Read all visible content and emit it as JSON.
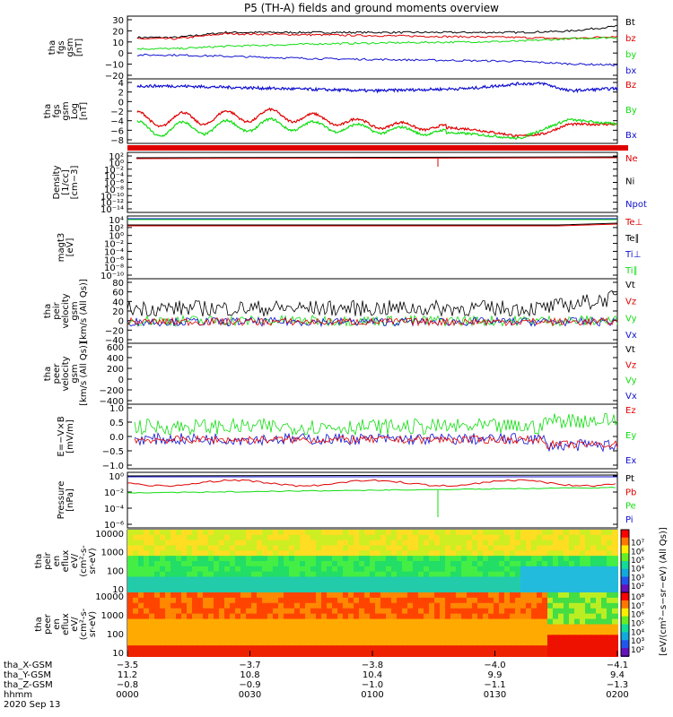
{
  "title": "P5 (TH-A) fields and ground moments overview",
  "colors": {
    "black": "#000000",
    "red": "#e00000",
    "green": "#10dd10",
    "blue": "#1010d0"
  },
  "panels": [
    {
      "id": "fgs-gsm",
      "ylabel": [
        "tha",
        "fgs",
        "gsm",
        "[nT]"
      ],
      "yticks": [
        "30",
        "20",
        "10",
        "0",
        "−10",
        "−20"
      ],
      "legend": [
        {
          "text": "Bt",
          "color": "black"
        },
        {
          "text": "bz",
          "color": "red"
        },
        {
          "text": "by",
          "color": "green"
        },
        {
          "text": "bx",
          "color": "blue"
        }
      ]
    },
    {
      "id": "fgs-gsm-log",
      "ylabel": [
        "tha",
        "fgs",
        "gsm",
        "Log",
        "[nT]"
      ],
      "yticks": [
        "4",
        "2",
        "0",
        "−2",
        "−4",
        "−6",
        "−8"
      ],
      "legend": [
        {
          "text": "Bz",
          "color": "red"
        },
        {
          "text": "By",
          "color": "green"
        },
        {
          "text": "Bx",
          "color": "blue"
        }
      ]
    },
    {
      "id": "density",
      "ylabel": [
        "Density",
        "[1/cc]",
        "[cm−3]"
      ],
      "yticks": [
        "10²",
        "10⁰",
        "10⁻²",
        "10⁻⁴",
        "10⁻⁶",
        "10⁻⁸",
        "10⁻¹⁰",
        "10⁻¹²",
        "10⁻¹⁴"
      ],
      "legend": [
        {
          "text": "Ne",
          "color": "red"
        },
        {
          "text": "Ni",
          "color": "black"
        },
        {
          "text": "Npot",
          "color": "blue"
        }
      ]
    },
    {
      "id": "temperature",
      "ylabel": [
        "magt3",
        "[eV]"
      ],
      "yticks": [
        "10⁴",
        "10²",
        "10⁰",
        "10⁻²",
        "10⁻⁴",
        "10⁻⁶",
        "10⁻⁸",
        "10⁻¹⁰"
      ],
      "legend": [
        {
          "text": "Te⊥",
          "color": "red"
        },
        {
          "text": "Te∥",
          "color": "black"
        },
        {
          "text": "Ti⊥",
          "color": "blue"
        },
        {
          "text": "Ti∥",
          "color": "green"
        }
      ]
    },
    {
      "id": "peir-velocity",
      "ylabel": [
        "tha",
        "peir",
        "velocity",
        "gsm",
        "[km/s (All Qs)]"
      ],
      "yticks": [
        "80",
        "60",
        "40",
        "20",
        "0",
        "−20",
        "−40"
      ],
      "legend": [
        {
          "text": "Vt",
          "color": "black"
        },
        {
          "text": "Vz",
          "color": "red"
        },
        {
          "text": "Vy",
          "color": "green"
        },
        {
          "text": "Vx",
          "color": "blue"
        }
      ]
    },
    {
      "id": "peer-velocity",
      "ylabel": [
        "tha",
        "peer",
        "velocity",
        "gsm",
        "[km/s (All Qs)]"
      ],
      "yticks": [
        "600",
        "400",
        "200",
        "0",
        "−200",
        "−400"
      ],
      "legend": [
        {
          "text": "Vt",
          "color": "black"
        },
        {
          "text": "Vz",
          "color": "red"
        },
        {
          "text": "Vy",
          "color": "green"
        },
        {
          "text": "Vx",
          "color": "blue"
        }
      ]
    },
    {
      "id": "efield",
      "ylabel": [
        "E=−V×B",
        "[mV/m]"
      ],
      "yticks": [
        "1.0",
        "0.5",
        "0.0",
        "−0.5",
        "−1.0"
      ],
      "legend": [
        {
          "text": "Ez",
          "color": "red"
        },
        {
          "text": "Ey",
          "color": "green"
        },
        {
          "text": "Ex",
          "color": "blue"
        }
      ]
    },
    {
      "id": "pressure",
      "ylabel": [
        "Pressure",
        "[nPa]"
      ],
      "yticks": [
        "10⁰",
        "10⁻²",
        "10⁻⁴",
        "10⁻⁶"
      ],
      "legend": [
        {
          "text": "Pt",
          "color": "black"
        },
        {
          "text": "Pb",
          "color": "red"
        },
        {
          "text": "Pe",
          "color": "green"
        },
        {
          "text": "Pi",
          "color": "blue"
        }
      ]
    },
    {
      "id": "peir-spec",
      "ylabel": [
        "tha",
        "peir",
        "en",
        "eflux",
        "eV/",
        "(cm²-s-",
        "sr-eV)"
      ],
      "yticks": [
        "10000",
        "1000",
        "100",
        "10"
      ],
      "legend": []
    },
    {
      "id": "peer-spec",
      "ylabel": [
        "tha",
        "peer",
        "en",
        "eflux",
        "eV/",
        "(cm²-s-",
        "sr-eV)"
      ],
      "yticks": [
        "10000",
        "1000",
        "100",
        "10"
      ],
      "legend": []
    }
  ],
  "colorbar": {
    "ticks": [
      "10⁸",
      "10⁷",
      "10⁶",
      "10⁵",
      "10⁴",
      "10³",
      "10²"
    ],
    "label": "[eV/(cm²−s−sr−eV) (All Qs)]"
  },
  "xaxis": {
    "rows": [
      {
        "label": "tha_X-GSM",
        "values": [
          "−3.5",
          "−3.7",
          "−3.8",
          "−4.0",
          "−4.1"
        ]
      },
      {
        "label": "tha_Y-GSM",
        "values": [
          "11.2",
          "10.8",
          "10.4",
          "9.9",
          "9.4"
        ]
      },
      {
        "label": "tha_Z-GSM",
        "values": [
          "−0.8",
          "−0.9",
          "−1.0",
          "−1.1",
          "−1.3"
        ]
      },
      {
        "label": "hhmm",
        "values": [
          "0000",
          "0030",
          "0100",
          "0130",
          "0200"
        ]
      }
    ],
    "date": "2020 Sep 13"
  },
  "chart_data": {
    "type": "line",
    "title": "P5 (TH-A) fields and ground moments overview",
    "x": [
      "0000",
      "0030",
      "0100",
      "0130",
      "0200"
    ],
    "xlabel": "hhmm",
    "panels": [
      {
        "name": "tha fgs gsm [nT]",
        "ylim": [
          -20,
          30
        ],
        "series": [
          {
            "name": "Bt",
            "x": [
              0.1,
              0.2,
              0.4,
              0.6,
              0.8,
              0.9,
              1.0
            ],
            "values": [
              13,
              17,
              17,
              17,
              17,
              18,
              22
            ]
          },
          {
            "name": "bz",
            "x": [
              0.1,
              0.2,
              0.4,
              0.6,
              0.8,
              0.9,
              1.0
            ],
            "values": [
              12,
              16,
              15,
              14,
              13,
              12,
              14
            ]
          },
          {
            "name": "by",
            "x": [
              0.1,
              0.2,
              0.4,
              0.6,
              0.8,
              0.9,
              1.0
            ],
            "values": [
              4,
              6,
              8,
              9,
              10,
              12,
              13
            ]
          },
          {
            "name": "bx",
            "x": [
              0.1,
              0.2,
              0.4,
              0.6,
              0.8,
              0.9,
              1.0
            ],
            "values": [
              -1,
              -2,
              -4,
              -5,
              -6,
              -8,
              -9
            ]
          }
        ]
      },
      {
        "name": "tha fgs gsm Log [nT]",
        "ylim": [
          -9,
          4.5
        ],
        "series": [
          {
            "name": "Bz",
            "x": [
              0.1,
              0.3,
              0.5,
              0.7,
              0.8,
              0.85,
              0.9,
              1.0
            ],
            "values": [
              -4,
              -3,
              -5,
              -6,
              -7.5,
              -7,
              -5,
              -5
            ]
          },
          {
            "name": "By",
            "x": [
              0.1,
              0.3,
              0.5,
              0.7,
              0.8,
              0.85,
              0.9,
              1.0
            ],
            "values": [
              -6,
              -5,
              -6,
              -7,
              -8,
              -6,
              -4,
              -5
            ]
          },
          {
            "name": "Bx",
            "x": [
              0.1,
              0.3,
              0.5,
              0.7,
              0.8,
              0.85,
              0.9,
              1.0
            ],
            "values": [
              3,
              2.5,
              2,
              2.5,
              3.5,
              3.5,
              2,
              2.5
            ]
          }
        ]
      },
      {
        "name": "E=-VxB [mV/m]",
        "ylim": [
          -1.0,
          1.0
        ],
        "series": [
          {
            "name": "Ez",
            "x": [
              0.05,
              0.5,
              0.85,
              1.0
            ],
            "values": [
              -0.1,
              -0.1,
              -0.2,
              -0.2
            ]
          },
          {
            "name": "Ey",
            "x": [
              0.05,
              0.5,
              0.85,
              1.0
            ],
            "values": [
              0.3,
              0.25,
              0.4,
              0.5
            ]
          },
          {
            "name": "Ex",
            "x": [
              0.05,
              0.5,
              0.85,
              1.0
            ],
            "values": [
              -0.1,
              -0.05,
              -0.3,
              -0.3
            ]
          }
        ]
      }
    ]
  }
}
